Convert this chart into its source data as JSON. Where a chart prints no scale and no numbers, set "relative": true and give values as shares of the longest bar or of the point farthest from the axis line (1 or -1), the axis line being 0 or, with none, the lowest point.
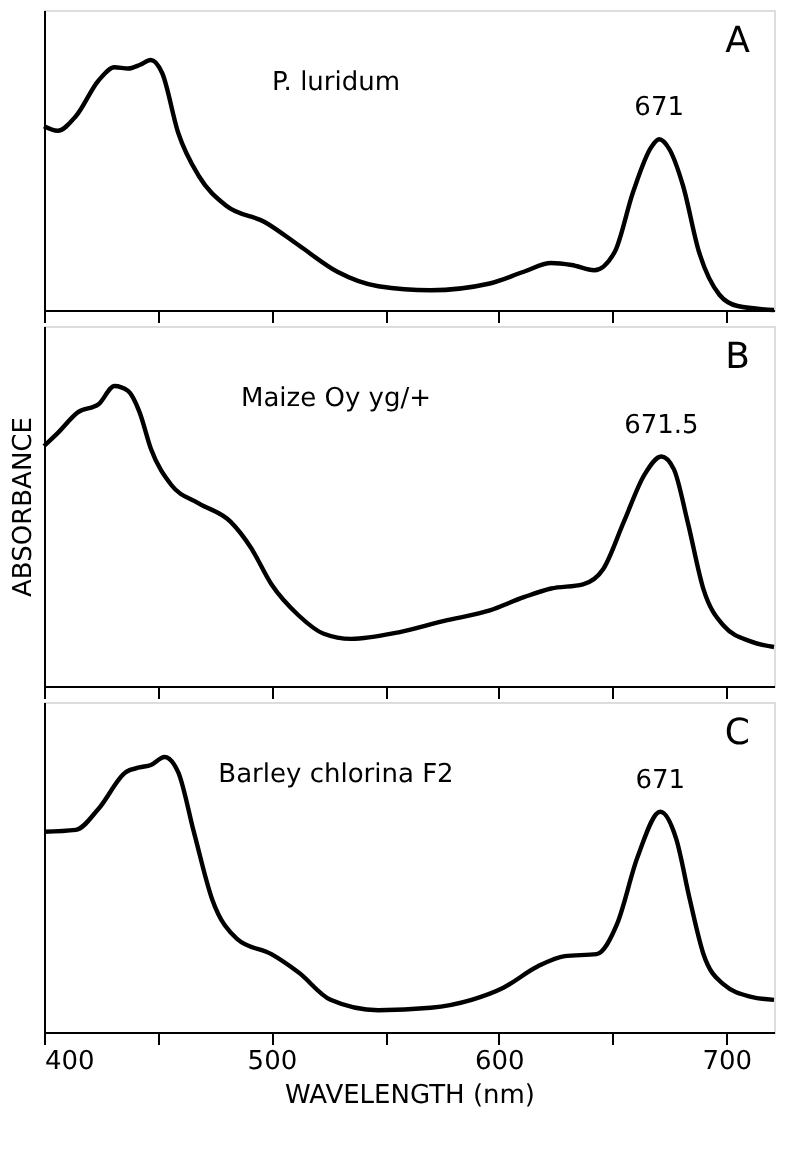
{
  "chart_data": [
    {
      "type": "line",
      "relative": true,
      "color": "#000000",
      "xlim": [
        400,
        721
      ],
      "xticks": [
        400,
        {
          "value": 450,
          "label": null
        },
        500,
        {
          "value": 550,
          "label": null
        },
        600,
        {
          "value": 650,
          "label": null
        },
        700
      ],
      "tick_labels": false,
      "x": [
        400,
        406,
        414,
        424,
        431,
        437,
        442,
        447,
        452,
        459,
        468,
        480,
        497,
        512,
        529,
        547,
        570,
        596,
        611,
        623,
        632,
        642,
        651,
        659,
        667,
        670.5,
        675,
        681,
        688,
        697,
        705,
        721
      ],
      "values": [
        0.735,
        0.717,
        0.775,
        0.918,
        0.971,
        0.966,
        0.98,
        1.0,
        0.947,
        0.709,
        0.537,
        0.418,
        0.352,
        0.259,
        0.153,
        0.095,
        0.079,
        0.106,
        0.153,
        0.188,
        0.18,
        0.159,
        0.233,
        0.471,
        0.651,
        0.683,
        0.643,
        0.497,
        0.233,
        0.061,
        0.016,
        0.0
      ],
      "annotations": [
        "A",
        "P. luridum",
        {
          "text": "671",
          "x": 670.5,
          "y": 0.683
        }
      ]
    },
    {
      "type": "line",
      "relative": true,
      "color": "#000000",
      "xlim": [
        400,
        721
      ],
      "xticks": [
        400,
        {
          "value": 450,
          "label": null
        },
        500,
        {
          "value": 550,
          "label": null
        },
        600,
        {
          "value": 650,
          "label": null
        },
        700
      ],
      "tick_labels": false,
      "ylabel": "ABSORBANCE",
      "x": [
        400,
        406,
        415,
        424,
        431,
        437,
        442,
        447,
        456,
        468,
        482,
        491,
        500,
        512,
        523,
        535,
        556,
        576,
        596,
        611,
        623,
        637,
        646,
        655,
        664,
        671.5,
        677,
        683,
        690,
        699,
        711,
        721
      ],
      "values": [
        0.8,
        0.843,
        0.913,
        0.939,
        1.0,
        0.983,
        0.913,
        0.791,
        0.67,
        0.609,
        0.548,
        0.461,
        0.339,
        0.235,
        0.174,
        0.157,
        0.179,
        0.217,
        0.252,
        0.296,
        0.325,
        0.339,
        0.391,
        0.548,
        0.704,
        0.765,
        0.722,
        0.548,
        0.322,
        0.2,
        0.148,
        0.13
      ],
      "annotations": [
        "B",
        "Maize Oy yg/+",
        {
          "text": "671.5",
          "x": 671.5,
          "y": 0.765
        }
      ]
    },
    {
      "type": "line",
      "relative": true,
      "color": "#000000",
      "xlim": [
        400,
        721
      ],
      "xticks": [
        400,
        {
          "value": 450,
          "label": null
        },
        500,
        {
          "value": 550,
          "label": null
        },
        600,
        {
          "value": 650,
          "label": null
        },
        700
      ],
      "tick_labels": "x",
      "xlabel": "WAVELENGTH (nm)",
      "x": [
        400,
        414,
        424,
        436,
        442,
        447,
        453,
        459,
        466,
        474,
        485,
        500,
        512,
        526,
        547,
        570,
        588,
        602,
        617,
        629,
        643,
        652,
        661,
        671,
        678,
        684,
        690,
        699,
        711,
        721
      ],
      "values": [
        0.728,
        0.735,
        0.812,
        0.945,
        0.962,
        0.971,
        1.0,
        0.945,
        0.724,
        0.481,
        0.338,
        0.283,
        0.216,
        0.117,
        0.079,
        0.088,
        0.117,
        0.161,
        0.238,
        0.276,
        0.283,
        0.393,
        0.636,
        0.801,
        0.702,
        0.481,
        0.283,
        0.172,
        0.128,
        0.117
      ],
      "annotations": [
        "C",
        "Barley chlorina F2",
        {
          "text": "671",
          "x": 671,
          "y": 0.801
        }
      ]
    }
  ]
}
